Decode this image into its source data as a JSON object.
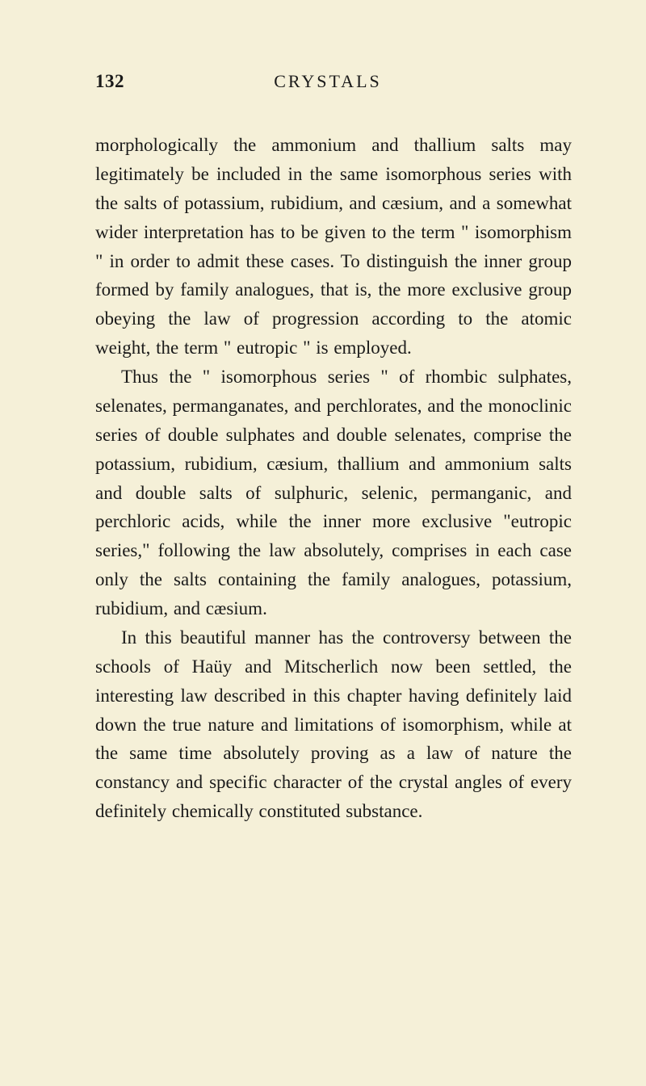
{
  "page": {
    "number": "132",
    "runningHead": "CRYSTALS",
    "background_color": "#f5f0d8",
    "text_color": "#1a1a1a",
    "paragraphs": [
      {
        "indent": false,
        "text": "morphologically the ammonium and thallium salts may legitimately be included in the same iso­morphous series with the salts of potassium, rubidium, and cæsium, and a somewhat wider interpretation has to be given to the term \" isomorphism \" in order to admit these cases. To distinguish the inner group formed by family analogues, that is, the more ex­clusive group obeying the law of progression accord­ing to the atomic weight, the term \" eutropic \" is employed."
      },
      {
        "indent": true,
        "text": "Thus the \" isomorphous series \" of rhombic sul­phates, selenates, permanganates, and perchlorates, and the monoclinic series of double sulphates and double selenates, comprise the potassium, rubidium, cæsium, thallium and ammonium salts and double salts of sulphuric, selenic, permanganic, and perchloric acids, while the inner more exclusive \"eutropic series,\" following the law absolutely, comprises in each case only the salts containing the family analogues, potassium, rubidium, and cæsium."
      },
      {
        "indent": true,
        "text": "In this beautiful manner has the controversy be­tween the schools of Haüy and Mitscherlich now been settled, the interesting law described in this chapter having definitely laid down the true nature and limitations of isomorphism, while at the same time absolutely proving as a law of nature the constancy and specific character of the crystal angles of every definitely chemically constituted substance."
      }
    ]
  }
}
